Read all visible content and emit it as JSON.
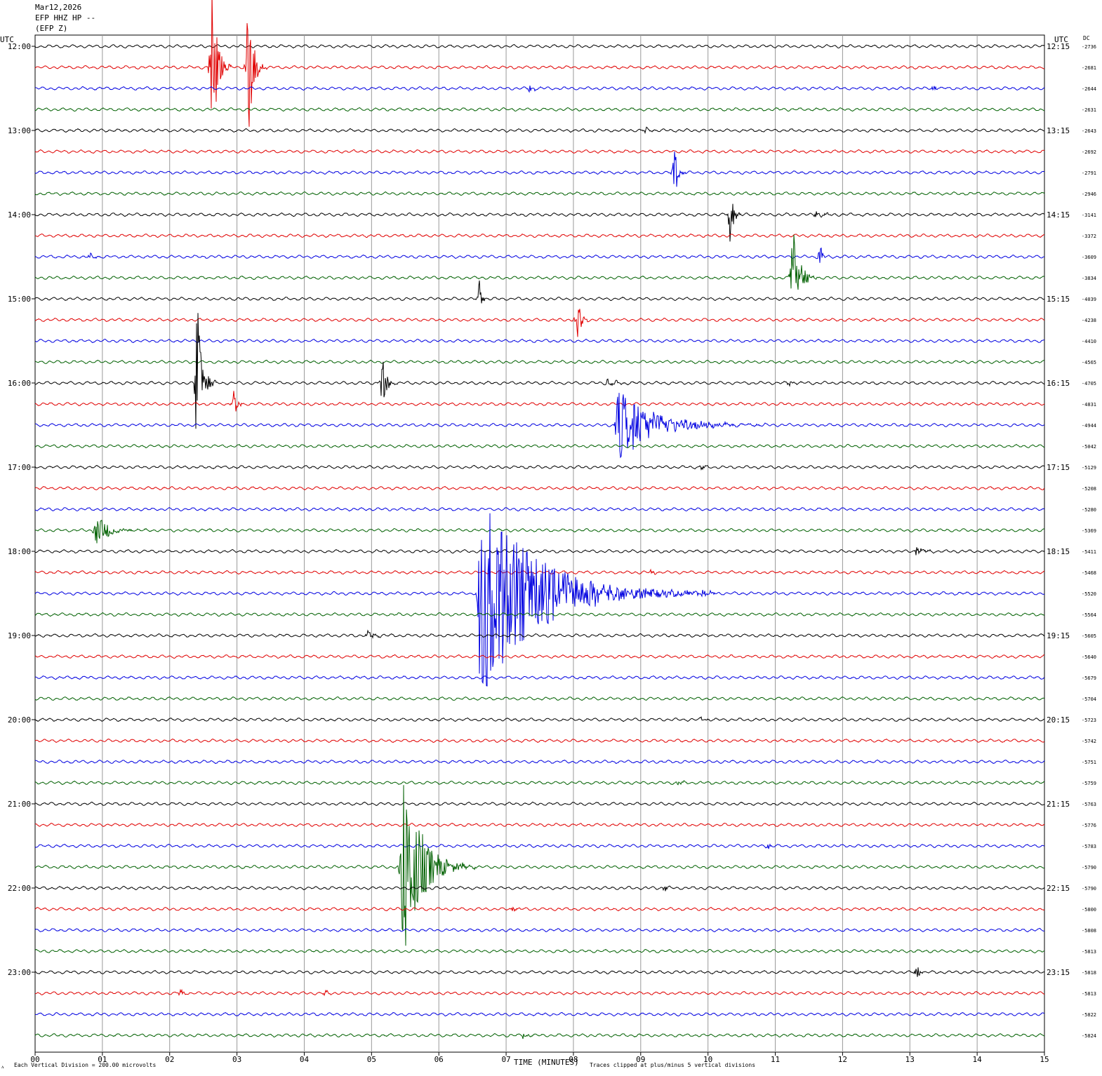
{
  "header": {
    "date": "Mar12,2026",
    "station": "EFP HHZ HP --",
    "component": "(EFP Z)"
  },
  "labels": {
    "left_utc": "UTC",
    "right_utc": "UTC",
    "dc": "DC",
    "xlabel": "TIME (MINUTES)",
    "scale_note": "Each Vertical Division =  200.00 microvolts",
    "clip_note": "Traces clipped at plus/minus 5 vertical divisions",
    "corner_mark": "ᴧ"
  },
  "chart_data": {
    "type": "line",
    "xlim": [
      0,
      15
    ],
    "x_ticks": [
      "00",
      "01",
      "02",
      "03",
      "04",
      "05",
      "06",
      "07",
      "08",
      "09",
      "10",
      "11",
      "12",
      "13",
      "14",
      "15"
    ],
    "grid": "vertical lines at each minute",
    "colors": [
      "#000000",
      "#e00000",
      "#0000e0",
      "#006000"
    ],
    "left_hour_labels": [
      "12:00",
      "13:00",
      "14:00",
      "15:00",
      "16:00",
      "17:00",
      "18:00",
      "19:00",
      "20:00",
      "21:00",
      "22:00",
      "23:00"
    ],
    "right_hour_labels": [
      "12:15",
      "13:15",
      "14:15",
      "15:15",
      "16:15",
      "17:15",
      "18:15",
      "19:15",
      "20:15",
      "21:15",
      "22:15",
      "23:15"
    ],
    "dc_offsets": [
      "-2736",
      "-2681",
      "-2644",
      "-2631",
      "-2643",
      "-2692",
      "-2791",
      "-2946",
      "-3141",
      "-3372",
      "-3609",
      "-3834",
      "-4039",
      "-4238",
      "-4410",
      "-4565",
      "-4705",
      "-4831",
      "-4944",
      "-5042",
      "-5129",
      "-5208",
      "-5280",
      "-5369",
      "-5411",
      "-5468",
      "-5520",
      "-5564",
      "-5605",
      "-5640",
      "-5679",
      "-5704",
      "-5723",
      "-5742",
      "-5751",
      "-5759",
      "-5763",
      "-5776",
      "-5783",
      "-5790",
      "-5790",
      "-5800",
      "-5808",
      "-5813",
      "-5818",
      "-5813",
      "-5822",
      "-5824"
    ],
    "traces_per_hour": 4,
    "trace_minutes": 15,
    "events": [
      {
        "trace": 1,
        "minute": 2.62,
        "amplitude": 160,
        "duration": 0.3
      },
      {
        "trace": 1,
        "minute": 3.15,
        "amplitude": 150,
        "duration": 0.3
      },
      {
        "trace": 2,
        "minute": 7.35,
        "amplitude": 6,
        "duration": 0.3
      },
      {
        "trace": 2,
        "minute": 13.35,
        "amplitude": 6,
        "duration": 0.3
      },
      {
        "trace": 4,
        "minute": 9.05,
        "amplitude": 6,
        "duration": 0.3
      },
      {
        "trace": 6,
        "minute": 9.5,
        "amplitude": 45,
        "duration": 0.2
      },
      {
        "trace": 8,
        "minute": 10.32,
        "amplitude": 55,
        "duration": 0.2
      },
      {
        "trace": 8,
        "minute": 11.6,
        "amplitude": 6,
        "duration": 0.5
      },
      {
        "trace": 10,
        "minute": 11.65,
        "amplitude": 30,
        "duration": 0.15
      },
      {
        "trace": 10,
        "minute": 0.8,
        "amplitude": 4,
        "duration": 0.4
      },
      {
        "trace": 11,
        "minute": 11.25,
        "amplitude": 90,
        "duration": 0.4
      },
      {
        "trace": 12,
        "minute": 6.6,
        "amplitude": 30,
        "duration": 0.15
      },
      {
        "trace": 13,
        "minute": 8.05,
        "amplitude": 45,
        "duration": 0.2
      },
      {
        "trace": 16,
        "minute": 2.4,
        "amplitude": 150,
        "duration": 0.3
      },
      {
        "trace": 16,
        "minute": 5.15,
        "amplitude": 45,
        "duration": 0.25
      },
      {
        "trace": 16,
        "minute": 8.5,
        "amplitude": 5,
        "duration": 0.6
      },
      {
        "trace": 16,
        "minute": 11.2,
        "amplitude": 5,
        "duration": 0.3
      },
      {
        "trace": 17,
        "minute": 2.95,
        "amplitude": 30,
        "duration": 0.2
      },
      {
        "trace": 18,
        "minute": 8.65,
        "amplitude": 55,
        "duration": 2.2
      },
      {
        "trace": 20,
        "minute": 9.9,
        "amplitude": 5,
        "duration": 0.2
      },
      {
        "trace": 23,
        "minute": 0.9,
        "amplitude": 25,
        "duration": 0.8
      },
      {
        "trace": 24,
        "minute": 13.1,
        "amplitude": 8,
        "duration": 0.4
      },
      {
        "trace": 25,
        "minute": 9.15,
        "amplitude": 4,
        "duration": 0.3
      },
      {
        "trace": 26,
        "minute": 6.6,
        "amplitude": 160,
        "duration": 3.5
      },
      {
        "trace": 26,
        "minute": 9.9,
        "amplitude": 4,
        "duration": 0.4
      },
      {
        "trace": 28,
        "minute": 4.95,
        "amplitude": 10,
        "duration": 0.3
      },
      {
        "trace": 32,
        "minute": 9.9,
        "amplitude": 4,
        "duration": 0.3
      },
      {
        "trace": 35,
        "minute": 9.55,
        "amplitude": 4,
        "duration": 0.3
      },
      {
        "trace": 38,
        "minute": 10.9,
        "amplitude": 5,
        "duration": 0.15
      },
      {
        "trace": 39,
        "minute": 5.45,
        "amplitude": 160,
        "duration": 1.1
      },
      {
        "trace": 40,
        "minute": 9.35,
        "amplitude": 5,
        "duration": 0.2
      },
      {
        "trace": 41,
        "minute": 7.1,
        "amplitude": 5,
        "duration": 0.2
      },
      {
        "trace": 44,
        "minute": 13.1,
        "amplitude": 15,
        "duration": 0.15
      },
      {
        "trace": 45,
        "minute": 2.15,
        "amplitude": 8,
        "duration": 0.2
      },
      {
        "trace": 45,
        "minute": 4.3,
        "amplitude": 5,
        "duration": 0.3
      },
      {
        "trace": 47,
        "minute": 7.25,
        "amplitude": 5,
        "duration": 0.3
      }
    ]
  }
}
